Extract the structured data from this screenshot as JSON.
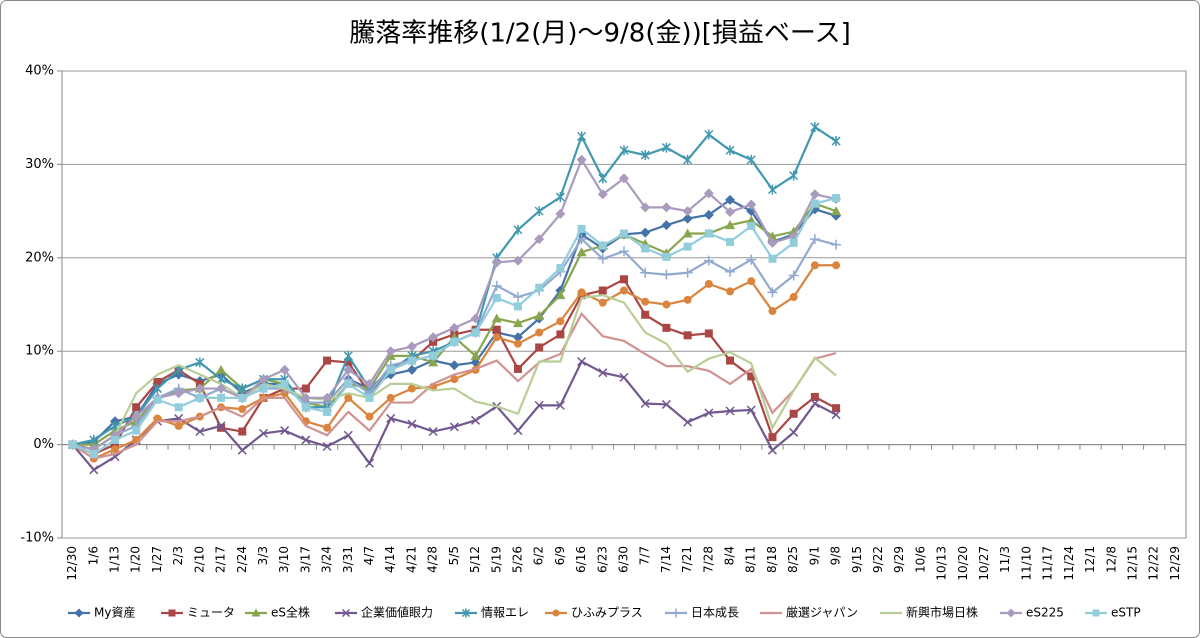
{
  "chart_data": {
    "type": "line",
    "title": "騰落率推移(1/2(月)～9/8(金))[損益ベース]",
    "categories": [
      "12/30",
      "1/6",
      "1/13",
      "1/20",
      "1/27",
      "2/3",
      "2/10",
      "2/17",
      "2/24",
      "3/3",
      "3/10",
      "3/17",
      "3/24",
      "3/31",
      "4/7",
      "4/14",
      "4/21",
      "4/28",
      "5/5",
      "5/12",
      "5/19",
      "5/26",
      "6/2",
      "6/9",
      "6/16",
      "6/23",
      "6/30",
      "7/7",
      "7/14",
      "7/21",
      "7/28",
      "8/4",
      "8/11",
      "8/18",
      "8/25",
      "9/1",
      "9/8",
      "9/15",
      "9/22",
      "9/29",
      "10/6",
      "10/13",
      "10/20",
      "10/27",
      "11/3",
      "11/10",
      "11/17",
      "11/24",
      "12/1",
      "12/8",
      "12/15",
      "12/22",
      "12/29"
    ],
    "ylim": [
      -10,
      40
    ],
    "yticks": [
      {
        "value": -10,
        "label": "-10%"
      },
      {
        "value": 0,
        "label": "0%"
      },
      {
        "value": 10,
        "label": "10%"
      },
      {
        "value": 20,
        "label": "20%"
      },
      {
        "value": 30,
        "label": "30%"
      },
      {
        "value": 40,
        "label": "40%"
      }
    ],
    "grid": true,
    "legend": "bottom",
    "series": [
      {
        "name": "My資産",
        "color": "#4572A7",
        "marker": "diamond",
        "values": [
          0,
          0.3,
          2.5,
          3,
          6.5,
          7.5,
          6.8,
          7.5,
          5.5,
          6.5,
          6.5,
          4.5,
          4.5,
          7,
          6,
          7.5,
          8,
          9,
          8.5,
          8.8,
          12,
          11.5,
          13.5,
          16.5,
          22.5,
          21,
          22.5,
          22.7,
          23.5,
          24.2,
          24.6,
          26.2,
          25,
          21.7,
          22.5,
          25.2,
          24.5,
          null,
          null,
          null,
          null,
          null,
          null,
          null,
          null,
          null,
          null,
          null,
          null,
          null,
          null,
          null,
          null
        ]
      },
      {
        "name": "ミュータ",
        "color": "#AA4643",
        "marker": "square",
        "values": [
          0,
          -1,
          0,
          4,
          6.7,
          8,
          6.5,
          1.8,
          1.4,
          5,
          6,
          6,
          9,
          8.8,
          5.5,
          8,
          9,
          11,
          11.8,
          12.3,
          12.3,
          8.1,
          10.4,
          11.8,
          16,
          16.5,
          17.7,
          13.9,
          12.5,
          11.7,
          11.9,
          9,
          7.3,
          0.8,
          3.3,
          5.1,
          3.9,
          null,
          null,
          null,
          null,
          null,
          null,
          null,
          null,
          null,
          null,
          null,
          null,
          null,
          null,
          null,
          null
        ]
      },
      {
        "name": "eS全株",
        "color": "#89A54E",
        "marker": "triangle",
        "values": [
          0,
          0,
          1.5,
          2.5,
          5,
          5.8,
          6,
          8,
          6,
          7,
          6.5,
          4.5,
          4,
          6.5,
          6,
          9.5,
          9.5,
          8.8,
          11.5,
          9.5,
          13.5,
          13,
          13.8,
          16,
          20.6,
          21.3,
          22.5,
          21.5,
          20.5,
          22.6,
          22.6,
          23.5,
          24,
          22.3,
          22.8,
          25.8,
          25,
          null,
          null,
          null,
          null,
          null,
          null,
          null,
          null,
          null,
          null,
          null,
          null,
          null,
          null,
          null,
          null
        ]
      },
      {
        "name": "企業価値眼力",
        "color": "#71588F",
        "marker": "x",
        "values": [
          0,
          -2.7,
          -1.3,
          0.5,
          2.5,
          2.8,
          1.4,
          2,
          -0.6,
          1.2,
          1.5,
          0.5,
          -0.2,
          1,
          -2,
          2.8,
          2.2,
          1.4,
          1.9,
          2.6,
          4.1,
          1.5,
          4.2,
          4.2,
          8.9,
          7.7,
          7.2,
          4.4,
          4.3,
          2.4,
          3.4,
          3.6,
          3.7,
          -0.6,
          1.3,
          4.4,
          3.2,
          null,
          null,
          null,
          null,
          null,
          null,
          null,
          null,
          null,
          null,
          null,
          null,
          null,
          null,
          null,
          null
        ]
      },
      {
        "name": "情報エレ",
        "color": "#4198AF",
        "marker": "star",
        "values": [
          0,
          0.5,
          2,
          3,
          6,
          8,
          8.8,
          7,
          6,
          7,
          7,
          4,
          4,
          9.5,
          6,
          8,
          9.5,
          10,
          11,
          12,
          20,
          23,
          25,
          26.5,
          33,
          28.5,
          31.5,
          31,
          31.8,
          30.5,
          33.2,
          31.5,
          30.5,
          27.3,
          28.8,
          34,
          32.5,
          null,
          null,
          null,
          null,
          null,
          null,
          null,
          null,
          null,
          null,
          null,
          null,
          null,
          null,
          null,
          null
        ]
      },
      {
        "name": "ひふみプラス",
        "color": "#DB843D",
        "marker": "circle",
        "values": [
          0,
          -1.5,
          -0.5,
          0.5,
          2.8,
          2,
          3,
          4,
          3.8,
          5,
          5.5,
          2.5,
          1.8,
          5,
          3,
          5,
          6,
          6.2,
          7,
          8,
          11.5,
          10.8,
          12,
          13.2,
          16.3,
          15.2,
          16.5,
          15.3,
          15,
          15.5,
          17.2,
          16.4,
          17.5,
          14.3,
          15.8,
          19.2,
          19.2,
          null,
          null,
          null,
          null,
          null,
          null,
          null,
          null,
          null,
          null,
          null,
          null,
          null,
          null,
          null,
          null
        ]
      },
      {
        "name": "日本成長",
        "color": "#93A9CF",
        "marker": "plus",
        "values": [
          0,
          -0.5,
          1,
          2,
          5,
          6,
          5,
          6,
          5,
          6,
          6,
          4.5,
          4.5,
          7,
          5.5,
          8.5,
          9,
          9.5,
          11,
          12,
          17,
          15.8,
          16.5,
          18.5,
          22,
          19.9,
          20.7,
          18.4,
          18.2,
          18.4,
          19.7,
          18.5,
          19.8,
          16.3,
          18.1,
          22,
          21.4,
          null,
          null,
          null,
          null,
          null,
          null,
          null,
          null,
          null,
          null,
          null,
          null,
          null,
          null,
          null,
          null
        ]
      },
      {
        "name": "厳選ジャパン",
        "color": "#D19392",
        "values": [
          0,
          -1.5,
          -1,
          0,
          2.5,
          2.5,
          3,
          4,
          3,
          5,
          5,
          2,
          1,
          3.5,
          1.5,
          4.5,
          4.5,
          6.5,
          7.5,
          8.1,
          9,
          6.8,
          8.8,
          9.7,
          14,
          11.6,
          11.1,
          9.7,
          8.4,
          8.4,
          7.9,
          6.5,
          8.1,
          3.4,
          5.8,
          9.2,
          9.8,
          null,
          null,
          null,
          null,
          null,
          null,
          null,
          null,
          null,
          null,
          null,
          null,
          null,
          null,
          null,
          null
        ]
      },
      {
        "name": "新興市場日株",
        "color": "#B9CD96",
        "values": [
          0,
          -0.5,
          1,
          5.5,
          7.5,
          8.5,
          7.5,
          6.5,
          5,
          6.5,
          6,
          5,
          4.8,
          5.5,
          5,
          6.5,
          6.5,
          5.8,
          6,
          4.6,
          4.1,
          3.3,
          8.9,
          8.9,
          15.7,
          16,
          15.2,
          12,
          10.8,
          7.8,
          9.2,
          9.9,
          8.7,
          1.8,
          5.8,
          9.3,
          7.4,
          null,
          null,
          null,
          null,
          null,
          null,
          null,
          null,
          null,
          null,
          null,
          null,
          null,
          null,
          null,
          null
        ]
      },
      {
        "name": "eS225",
        "color": "#A99BBD",
        "marker": "diamond",
        "values": [
          0,
          -0.5,
          1,
          3,
          5,
          5.5,
          6,
          6,
          5,
          7,
          8,
          5,
          5,
          8,
          6.5,
          10,
          10.5,
          11.5,
          12.5,
          13.5,
          19.5,
          19.7,
          22,
          24.7,
          30.5,
          26.8,
          28.5,
          25.4,
          25.4,
          25,
          26.9,
          24.9,
          25.7,
          21.6,
          22.3,
          26.8,
          26.3,
          null,
          null,
          null,
          null,
          null,
          null,
          null,
          null,
          null,
          null,
          null,
          null,
          null,
          null,
          null,
          null
        ]
      },
      {
        "name": "eSTP",
        "color": "#92CDDC",
        "marker": "square",
        "values": [
          0,
          -1,
          0.5,
          1.5,
          4.8,
          4,
          5,
          5,
          5,
          6,
          6.5,
          4,
          3.5,
          6.5,
          5,
          8,
          9,
          9.5,
          11,
          12,
          15.7,
          14.8,
          16.8,
          18.9,
          23.1,
          21.3,
          22.6,
          21,
          20.1,
          21.2,
          22.6,
          21.7,
          23.4,
          19.9,
          21.6,
          25.8,
          26.4,
          null,
          null,
          null,
          null,
          null,
          null,
          null,
          null,
          null,
          null,
          null,
          null,
          null,
          null,
          null,
          null
        ]
      }
    ]
  }
}
